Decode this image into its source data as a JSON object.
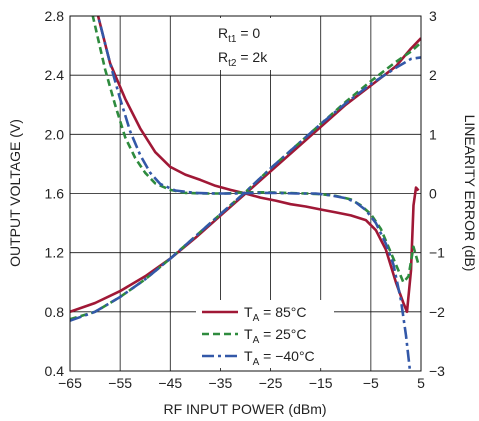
{
  "chart_data": {
    "type": "line",
    "xlabel": "RF INPUT POWER (dBm)",
    "ylabel_left": "OUTPUT VOLTAGE (V)",
    "ylabel_right": "LINEARITY ERROR (dB)",
    "xlim": [
      -65,
      5
    ],
    "ylim_left": [
      0.4,
      2.8
    ],
    "ylim_right": [
      -3,
      3
    ],
    "x_ticks": [
      "−65",
      "−55",
      "−45",
      "−35",
      "−25",
      "−15",
      "−5",
      "5"
    ],
    "y_left_ticks": [
      "0.4",
      "0.8",
      "1.2",
      "1.6",
      "2.0",
      "2.4",
      "2.8"
    ],
    "y_right_ticks": [
      "−3",
      "−2",
      "−1",
      "0",
      "1",
      "2",
      "3"
    ],
    "grid": true,
    "annotation": {
      "line1_main": "R",
      "line1_sub": "t1",
      "line1_rest": " = 0",
      "line2_main": "R",
      "line2_sub": "t2",
      "line2_rest": " = 2k"
    },
    "legend_position": "bottom-center",
    "series": [
      {
        "name": "T_A = 85°C",
        "legend_main": "T",
        "legend_sub": "A",
        "legend_rest": " = 85°C",
        "color": "#a01836",
        "dash": "solid",
        "voltage": [
          [
            -65,
            0.8
          ],
          [
            -60,
            0.86
          ],
          [
            -55,
            0.94
          ],
          [
            -50,
            1.04
          ],
          [
            -45,
            1.16
          ],
          [
            -40,
            1.3
          ],
          [
            -35,
            1.45
          ],
          [
            -30,
            1.6
          ],
          [
            -25,
            1.75
          ],
          [
            -20,
            1.9
          ],
          [
            -15,
            2.05
          ],
          [
            -10,
            2.2
          ],
          [
            -5,
            2.33
          ],
          [
            0,
            2.46
          ],
          [
            3,
            2.58
          ],
          [
            5,
            2.65
          ]
        ],
        "error_db": [
          [
            -60,
            3.2
          ],
          [
            -57,
            2.2
          ],
          [
            -54,
            1.6
          ],
          [
            -51,
            1.1
          ],
          [
            -48,
            0.7
          ],
          [
            -45,
            0.45
          ],
          [
            -42,
            0.32
          ],
          [
            -39,
            0.23
          ],
          [
            -36,
            0.13
          ],
          [
            -33,
            0.06
          ],
          [
            -30,
            0.0
          ],
          [
            -27,
            -0.07
          ],
          [
            -24,
            -0.12
          ],
          [
            -21,
            -0.18
          ],
          [
            -18,
            -0.22
          ],
          [
            -15,
            -0.27
          ],
          [
            -12,
            -0.32
          ],
          [
            -9,
            -0.37
          ],
          [
            -6,
            -0.45
          ],
          [
            -4,
            -0.62
          ],
          [
            -2,
            -0.95
          ],
          [
            0,
            -1.5
          ],
          [
            1.5,
            -1.85
          ],
          [
            2.2,
            -2.0
          ],
          [
            3,
            -1.3
          ],
          [
            3.5,
            -0.2
          ],
          [
            4,
            0.1
          ],
          [
            4.5,
            0.05
          ]
        ]
      },
      {
        "name": "T_A = 25°C",
        "legend_main": "T",
        "legend_sub": "A",
        "legend_rest": " = 25°C",
        "color": "#2e8b3e",
        "dash": "dashed",
        "voltage": [
          [
            -65,
            0.75
          ],
          [
            -60,
            0.8
          ],
          [
            -55,
            0.9
          ],
          [
            -50,
            1.02
          ],
          [
            -45,
            1.16
          ],
          [
            -40,
            1.31
          ],
          [
            -35,
            1.46
          ],
          [
            -30,
            1.61
          ],
          [
            -25,
            1.77
          ],
          [
            -20,
            1.92
          ],
          [
            -15,
            2.07
          ],
          [
            -10,
            2.22
          ],
          [
            -5,
            2.36
          ],
          [
            0,
            2.49
          ],
          [
            3,
            2.56
          ],
          [
            5,
            2.62
          ]
        ],
        "error_db": [
          [
            -61,
            3.2
          ],
          [
            -58,
            2.1
          ],
          [
            -56,
            1.5
          ],
          [
            -54,
            0.95
          ],
          [
            -52,
            0.6
          ],
          [
            -50,
            0.35
          ],
          [
            -48,
            0.17
          ],
          [
            -45,
            0.06
          ],
          [
            -42,
            0.01
          ],
          [
            -38,
            0.0
          ],
          [
            -34,
            0.0
          ],
          [
            -30,
            0.02
          ],
          [
            -26,
            0.02
          ],
          [
            -22,
            0.01
          ],
          [
            -18,
            0.0
          ],
          [
            -15,
            -0.01
          ],
          [
            -12,
            -0.04
          ],
          [
            -9,
            -0.1
          ],
          [
            -7,
            -0.2
          ],
          [
            -5,
            -0.35
          ],
          [
            -3,
            -0.6
          ],
          [
            -1,
            -1.0
          ],
          [
            0.5,
            -1.3
          ],
          [
            1.5,
            -1.5
          ],
          [
            2.5,
            -1.4
          ],
          [
            3.5,
            -0.9
          ],
          [
            4.5,
            -1.2
          ]
        ]
      },
      {
        "name": "T_A = −40°C",
        "legend_main": "T",
        "legend_sub": "A",
        "legend_rest": " = −40°C",
        "color": "#3358a8",
        "dash": "dashdot",
        "voltage": [
          [
            -65,
            0.74
          ],
          [
            -60,
            0.8
          ],
          [
            -55,
            0.9
          ],
          [
            -50,
            1.02
          ],
          [
            -45,
            1.16
          ],
          [
            -40,
            1.31
          ],
          [
            -35,
            1.46
          ],
          [
            -30,
            1.61
          ],
          [
            -25,
            1.77
          ],
          [
            -20,
            1.92
          ],
          [
            -15,
            2.07
          ],
          [
            -10,
            2.21
          ],
          [
            -5,
            2.34
          ],
          [
            0,
            2.45
          ],
          [
            3,
            2.51
          ],
          [
            5,
            2.52
          ]
        ],
        "error_db": [
          [
            -60,
            3.2
          ],
          [
            -57,
            2.2
          ],
          [
            -55,
            1.6
          ],
          [
            -53,
            1.05
          ],
          [
            -51,
            0.65
          ],
          [
            -49,
            0.35
          ],
          [
            -47,
            0.16
          ],
          [
            -44,
            0.05
          ],
          [
            -40,
            0.01
          ],
          [
            -36,
            0.0
          ],
          [
            -32,
            0.0
          ],
          [
            -28,
            0.01
          ],
          [
            -24,
            0.01
          ],
          [
            -20,
            0.0
          ],
          [
            -16,
            0.0
          ],
          [
            -13,
            -0.03
          ],
          [
            -10,
            -0.08
          ],
          [
            -8,
            -0.15
          ],
          [
            -6,
            -0.28
          ],
          [
            -4,
            -0.5
          ],
          [
            -2,
            -0.85
          ],
          [
            -0.5,
            -1.2
          ],
          [
            1,
            -1.8
          ],
          [
            2,
            -2.4
          ],
          [
            2.8,
            -3.0
          ],
          [
            3.2,
            -3.2
          ]
        ]
      }
    ]
  }
}
